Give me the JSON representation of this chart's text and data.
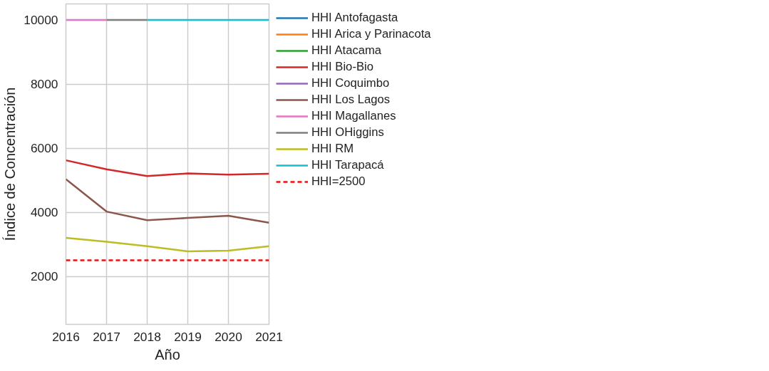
{
  "chart_data": {
    "type": "line",
    "xlabel": "Año",
    "ylabel": "Índice de Concentración",
    "x": [
      2016,
      2017,
      2018,
      2019,
      2020,
      2021
    ],
    "xlim": [
      2016,
      2021
    ],
    "xticks": [
      2016,
      2017,
      2018,
      2019,
      2020,
      2021
    ],
    "ylim": [
      500,
      10500
    ],
    "yticks": [
      2000,
      4000,
      6000,
      8000,
      10000
    ],
    "grid": true,
    "legend": "right",
    "line_style": "solid",
    "series": [
      {
        "name": "HHI Antofagasta",
        "color": "#1f77b4",
        "values": [
          null,
          null,
          null,
          null,
          null,
          null
        ]
      },
      {
        "name": "HHI Arica y Parinacota",
        "color": "#ff7f0e",
        "values": [
          null,
          null,
          null,
          null,
          null,
          null
        ]
      },
      {
        "name": "HHI Atacama",
        "color": "#2ca02c",
        "values": [
          null,
          null,
          null,
          null,
          null,
          null
        ]
      },
      {
        "name": "HHI Bio-Bio",
        "color": "#d62728",
        "values": [
          5620,
          5340,
          5130,
          5210,
          5170,
          5200
        ]
      },
      {
        "name": "HHI Coquimbo",
        "color": "#9467bd",
        "values": [
          null,
          null,
          null,
          null,
          null,
          null
        ]
      },
      {
        "name": "HHI Los Lagos",
        "color": "#8c564b",
        "values": [
          5030,
          4020,
          3750,
          3820,
          3890,
          3670
        ]
      },
      {
        "name": "HHI Magallanes",
        "color": "#e377c2",
        "values": [
          10000,
          10000,
          null,
          null,
          null,
          null
        ]
      },
      {
        "name": "HHI OHiggins",
        "color": "#7f7f7f",
        "values": [
          null,
          10000,
          10000,
          null,
          null,
          null
        ]
      },
      {
        "name": "HHI RM",
        "color": "#bcbd22",
        "values": [
          3200,
          3080,
          2940,
          2780,
          2800,
          2940
        ]
      },
      {
        "name": "HHI Tarapacá",
        "color": "#17becf",
        "values": [
          null,
          null,
          10000,
          10000,
          10000,
          10000
        ]
      }
    ],
    "ref_lines": [
      {
        "axis": "y",
        "value": 2500,
        "label": "HHI=2500",
        "color": "#ee1111",
        "line_style": "dashed"
      }
    ]
  }
}
